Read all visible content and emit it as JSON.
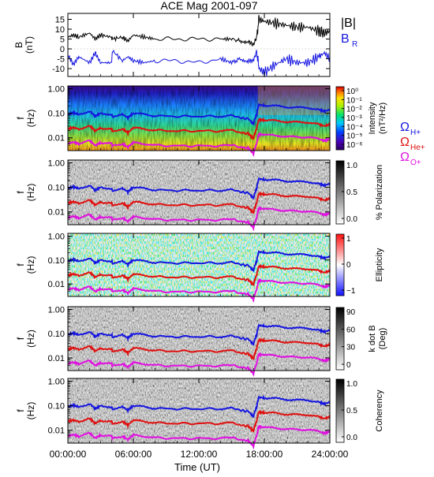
{
  "title": "ACE Mag 2001-097",
  "time_axis": {
    "label": "Time (UT)",
    "ticks": [
      "00:00:00",
      "06:00:00",
      "12:00:00",
      "18:00:00",
      "24:00:00"
    ],
    "range_hours": [
      0,
      24
    ]
  },
  "legend_panel1": {
    "btot": {
      "label": "|B|",
      "color": "#000000"
    },
    "br": {
      "label": "B",
      "sub": "R",
      "color": "#1515e0"
    }
  },
  "legend_gyro": [
    {
      "label": "Ω",
      "sub": "H+",
      "color": "#1515e0"
    },
    {
      "label": "Ω",
      "sub": "He+",
      "color": "#e01010"
    },
    {
      "label": "Ω",
      "sub": "O+",
      "color": "#e010e0"
    }
  ],
  "colors": {
    "btot": "#000000",
    "br": "#1515e0",
    "h_plus": "#1515e0",
    "he_plus": "#e01010",
    "o_plus": "#e010e0"
  },
  "panels": [
    {
      "id": "b-field",
      "ylabel": "B",
      "yunits": "(nT)",
      "ytick_labels": [
        "15",
        "10",
        "5",
        "0",
        "-5",
        "-10"
      ],
      "ylim": [
        -14,
        18
      ]
    },
    {
      "id": "intensity",
      "ylabel": "f",
      "yunits": "(Hz)",
      "ytick_labels": [
        "1.00",
        "0.10",
        "0.01"
      ],
      "colorbar": {
        "label": "Intensity",
        "units": "(nT²/Hz)",
        "tick_labels": [
          "10⁰",
          "10⁻¹",
          "10⁻²",
          "10⁻³",
          "10⁻⁴",
          "10⁻⁵",
          "10⁻⁶"
        ],
        "scale": "rainbow"
      }
    },
    {
      "id": "polarization",
      "ylabel": "f",
      "yunits": "(Hz)",
      "ytick_labels": [
        "1.00",
        "0.10",
        "0.01"
      ],
      "colorbar": {
        "label": "% Polarization",
        "tick_labels": [
          "1.0",
          "0.5",
          "0.0"
        ],
        "scale": "gray"
      }
    },
    {
      "id": "ellipticity",
      "ylabel": "f",
      "yunits": "(Hz)",
      "ytick_labels": [
        "1.00",
        "0.10",
        "0.01"
      ],
      "colorbar": {
        "label": "Ellipticity",
        "tick_labels": [
          "1",
          "0",
          "−1"
        ],
        "scale": "redblue"
      }
    },
    {
      "id": "kdotb",
      "ylabel": "f",
      "yunits": "(Hz)",
      "ytick_labels": [
        "1.00",
        "0.10",
        "0.01"
      ],
      "colorbar": {
        "label": "k dot B",
        "units": "(Deg)",
        "tick_labels": [
          "90",
          "60",
          "30",
          "0"
        ],
        "scale": "gray"
      }
    },
    {
      "id": "coherency",
      "ylabel": "f",
      "yunits": "(Hz)",
      "ytick_labels": [
        "1.00",
        "0.10",
        "0.01"
      ],
      "colorbar": {
        "label": "Coherency",
        "tick_labels": [
          "1.0",
          "0.5",
          "0.0"
        ],
        "scale": "gray"
      }
    }
  ],
  "chart_data": [
    {
      "type": "line",
      "panel": "b-field",
      "xlabel": "Time (UT)",
      "x_unit": "hours",
      "ylim": [
        -14,
        18
      ],
      "series": [
        {
          "name": "|B|",
          "x": [
            0,
            0.5,
            1,
            2,
            2.5,
            3,
            4,
            4.1,
            5,
            5.5,
            6,
            7,
            8,
            10,
            12,
            14,
            15,
            15.8,
            16.5,
            17,
            17.3,
            17.5,
            18,
            19,
            20,
            21,
            22,
            23,
            23.5,
            24
          ],
          "y": [
            6,
            7,
            6,
            8,
            5,
            7,
            6,
            5,
            6,
            4,
            7,
            6,
            5,
            5,
            5,
            5,
            5,
            4,
            4,
            2,
            6,
            15,
            14,
            13,
            12,
            11,
            11,
            9,
            8,
            9
          ]
        },
        {
          "name": "B R",
          "x": [
            0,
            0.5,
            1,
            2,
            2.5,
            3,
            4,
            4.1,
            5,
            5.5,
            6,
            7,
            8,
            10,
            12,
            14,
            15,
            15.8,
            16.5,
            17,
            17.3,
            17.5,
            18,
            19,
            20,
            21,
            22,
            23,
            23.5,
            24
          ],
          "y": [
            -3,
            -8,
            -4,
            -7,
            -2,
            -7,
            -7,
            -1,
            -6,
            -4,
            -6,
            -7,
            -6,
            -6,
            -7,
            -5,
            -7,
            -5,
            -6,
            -6,
            -1,
            -10,
            -12,
            -8,
            -5,
            -7,
            -7,
            -4,
            -2,
            -5
          ]
        }
      ]
    },
    {
      "type": "line",
      "panel": "gyrofrequencies",
      "xlabel": "Time (UT)",
      "x_unit": "hours",
      "yscale": "log",
      "ylabel": "f (Hz)",
      "ylim": [
        0.003,
        1.3
      ],
      "series": [
        {
          "name": "Ω H+",
          "x": [
            0,
            0.5,
            1,
            2,
            2.5,
            3,
            4,
            4.1,
            5,
            5.5,
            6,
            7,
            8,
            10,
            12,
            14,
            15,
            15.8,
            16.5,
            17,
            17.3,
            17.5,
            18,
            19,
            20,
            21,
            22,
            23,
            23.5,
            24
          ],
          "y": [
            0.09,
            0.105,
            0.09,
            0.12,
            0.075,
            0.1,
            0.09,
            0.075,
            0.09,
            0.065,
            0.1,
            0.09,
            0.078,
            0.075,
            0.075,
            0.075,
            0.08,
            0.065,
            0.06,
            0.035,
            0.09,
            0.22,
            0.21,
            0.2,
            0.18,
            0.17,
            0.17,
            0.14,
            0.12,
            0.14
          ]
        },
        {
          "name": "Ω He+",
          "x": [
            0,
            0.5,
            1,
            2,
            2.5,
            3,
            4,
            4.1,
            5,
            5.5,
            6,
            7,
            8,
            10,
            12,
            14,
            15,
            15.8,
            16.5,
            17,
            17.3,
            17.5,
            18,
            19,
            20,
            21,
            22,
            23,
            23.5,
            24
          ],
          "y": [
            0.023,
            0.026,
            0.023,
            0.03,
            0.019,
            0.025,
            0.023,
            0.019,
            0.023,
            0.016,
            0.025,
            0.023,
            0.02,
            0.019,
            0.019,
            0.019,
            0.02,
            0.016,
            0.015,
            0.009,
            0.023,
            0.055,
            0.052,
            0.05,
            0.045,
            0.043,
            0.043,
            0.035,
            0.03,
            0.035
          ]
        },
        {
          "name": "Ω O+",
          "x": [
            0,
            0.5,
            1,
            2,
            2.5,
            3,
            4,
            4.1,
            5,
            5.5,
            6,
            7,
            8,
            10,
            12,
            14,
            15,
            15.8,
            16.5,
            17,
            17.3,
            17.5,
            18,
            19,
            20,
            21,
            22,
            23,
            23.5,
            24
          ],
          "y": [
            0.0058,
            0.0066,
            0.0057,
            0.0075,
            0.0048,
            0.0063,
            0.0057,
            0.0048,
            0.0057,
            0.0041,
            0.0063,
            0.0057,
            0.0049,
            0.0047,
            0.0047,
            0.0047,
            0.005,
            0.0041,
            0.0038,
            0.0022,
            0.0057,
            0.014,
            0.013,
            0.0125,
            0.0112,
            0.0107,
            0.0107,
            0.0088,
            0.0076,
            0.0088
          ]
        }
      ]
    }
  ]
}
